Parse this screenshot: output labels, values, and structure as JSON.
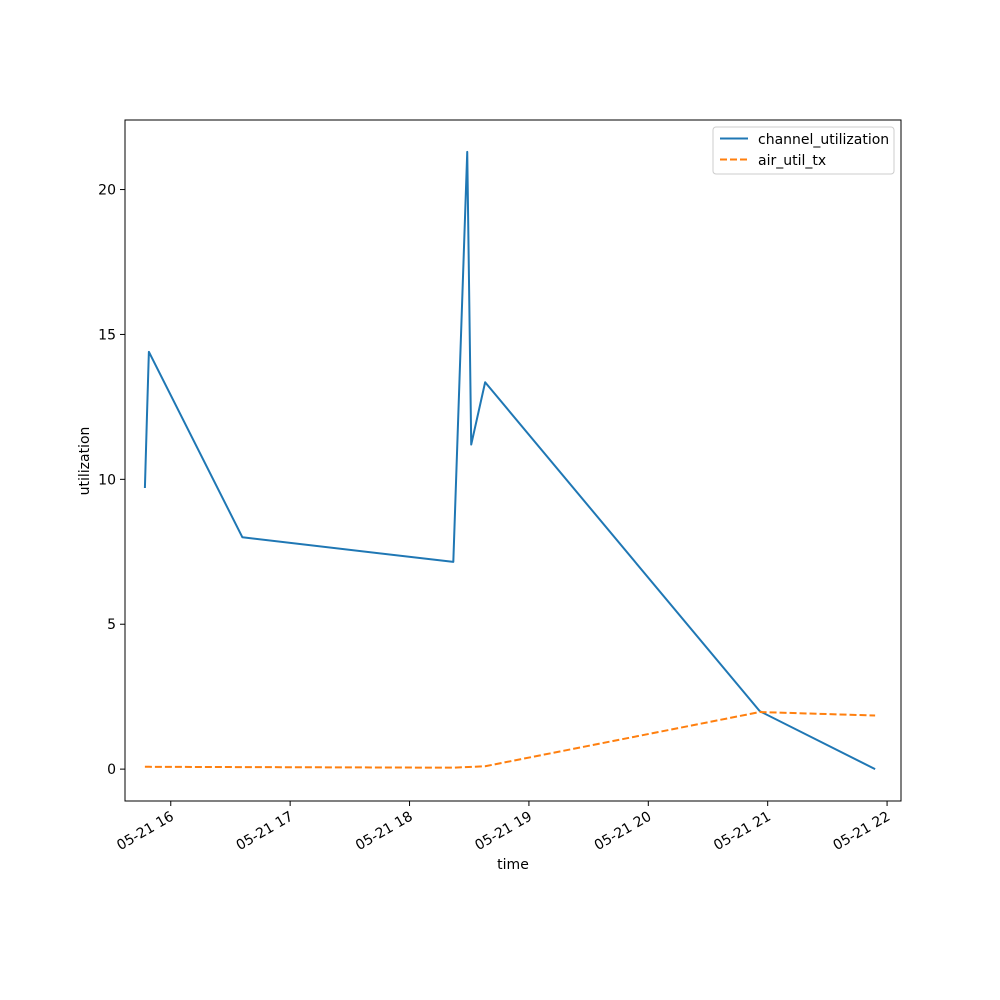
{
  "chart_data": {
    "type": "line",
    "title": "",
    "xlabel": "time",
    "ylabel": "utilization",
    "x_ticks": [
      "05-21 16",
      "05-21 17",
      "05-21 18",
      "05-21 19",
      "05-21 20",
      "05-21 21",
      "05-21 22"
    ],
    "y_ticks": [
      0,
      5,
      10,
      15,
      20
    ],
    "xlim": [
      "2024-05-21 15:37",
      "2024-05-21 22:07"
    ],
    "ylim": [
      -1.1,
      22.4
    ],
    "grid": false,
    "legend_position": "top-right",
    "series": [
      {
        "name": "channel_utilization",
        "color": "#1f77b4",
        "style": "solid",
        "points": [
          {
            "x": "2024-05-21 15:47",
            "y": 9.7
          },
          {
            "x": "2024-05-21 15:48",
            "y": 12.1
          },
          {
            "x": "2024-05-21 15:49",
            "y": 14.4
          },
          {
            "x": "2024-05-21 16:36",
            "y": 8.0
          },
          {
            "x": "2024-05-21 18:22",
            "y": 7.15
          },
          {
            "x": "2024-05-21 18:29",
            "y": 21.3
          },
          {
            "x": "2024-05-21 18:31",
            "y": 11.2
          },
          {
            "x": "2024-05-21 18:38",
            "y": 13.35
          },
          {
            "x": "2024-05-21 20:56",
            "y": 2.0
          },
          {
            "x": "2024-05-21 21:54",
            "y": 0.0
          }
        ]
      },
      {
        "name": "air_util_tx",
        "color": "#ff7f0e",
        "style": "dashed",
        "points": [
          {
            "x": "2024-05-21 15:47",
            "y": 0.08
          },
          {
            "x": "2024-05-21 15:49",
            "y": 0.08
          },
          {
            "x": "2024-05-21 16:36",
            "y": 0.07
          },
          {
            "x": "2024-05-21 18:22",
            "y": 0.05
          },
          {
            "x": "2024-05-21 18:38",
            "y": 0.1
          },
          {
            "x": "2024-05-21 20:56",
            "y": 1.97
          },
          {
            "x": "2024-05-21 21:54",
            "y": 1.85
          }
        ]
      }
    ]
  }
}
